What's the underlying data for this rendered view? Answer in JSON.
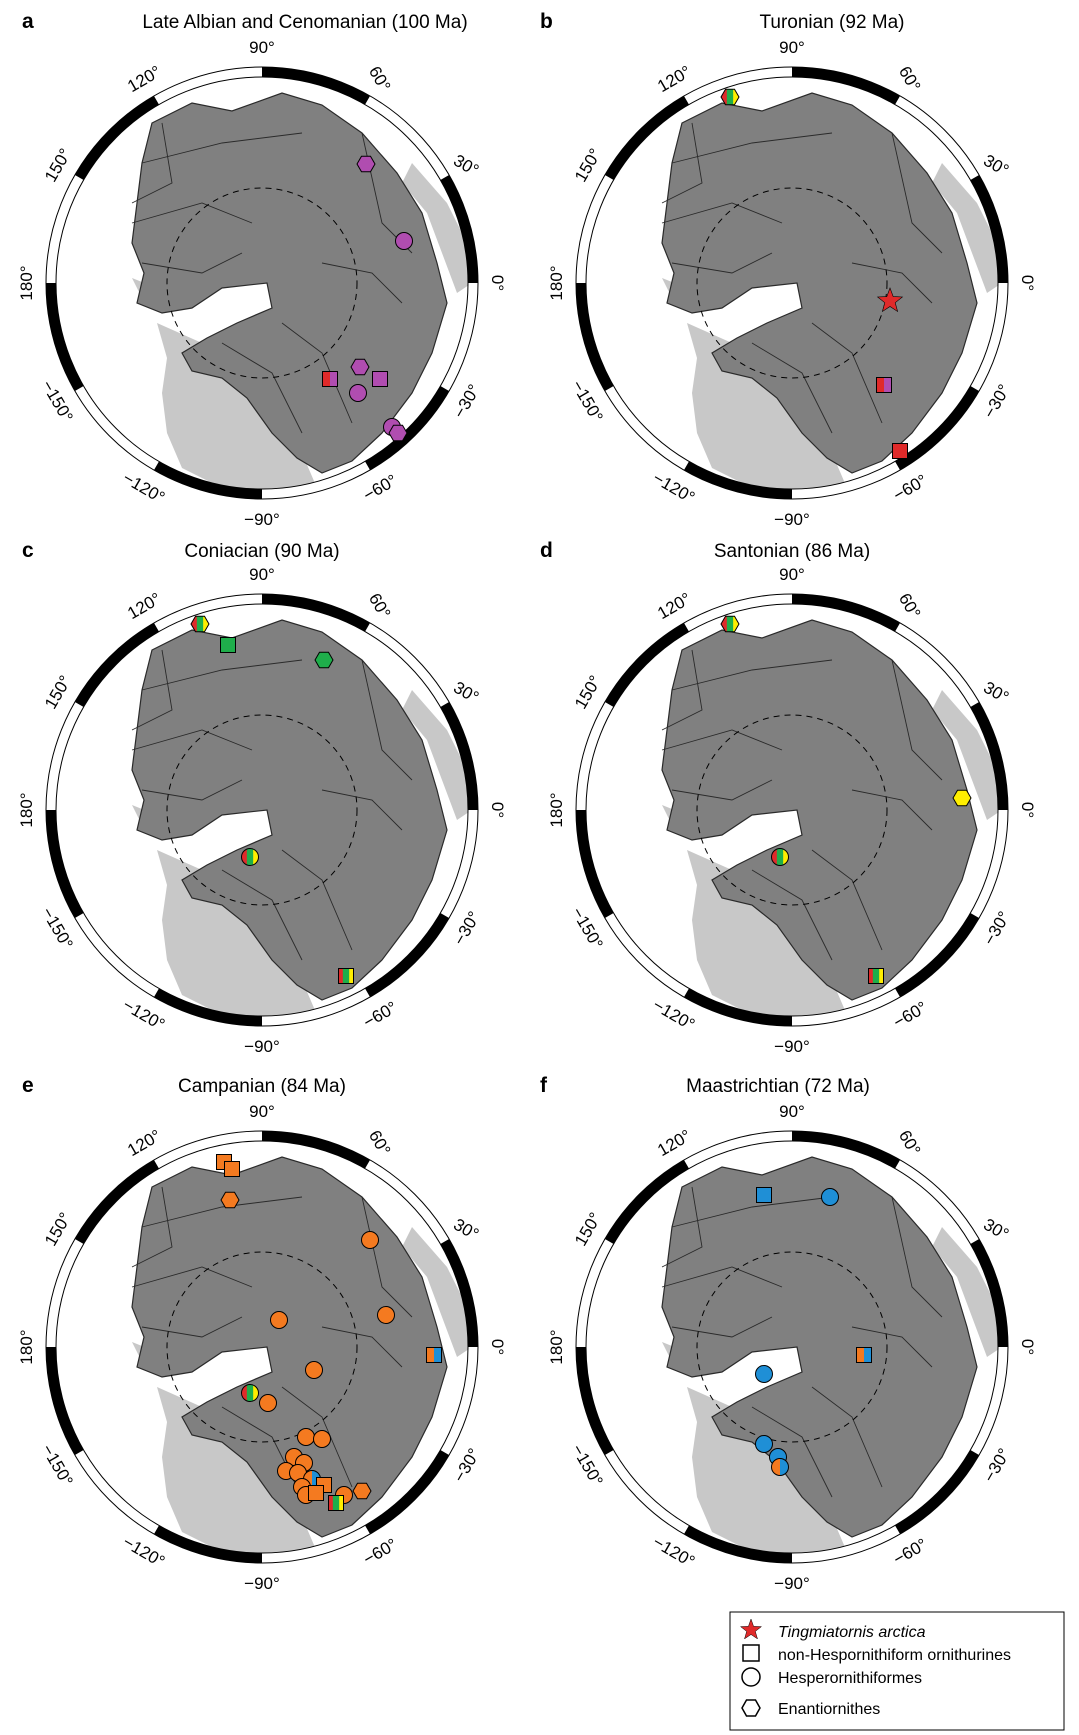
{
  "colors": {
    "landmass": "#808080",
    "landmass_edge": "#2a2a2a",
    "background_land": "#c8c8c8",
    "purple": "#b04db0",
    "red": "#e02a2a",
    "green": "#1fae4b",
    "yellow": "#ffee00",
    "orange": "#f47a20",
    "blue": "#1f8fd6"
  },
  "grid_labels": {
    "lon_90": "90°",
    "lon_60": "60°",
    "lon_30": "30°",
    "lon_0": "0°",
    "lon_m30": "−30°",
    "lon_m60": "−60°",
    "lon_m90": "−90°",
    "lon_m120": "−120°",
    "lon_m150": "−150°",
    "lon_180": "180°",
    "lon_150": "150°",
    "lon_120": "120°"
  },
  "panels": [
    {
      "letter": "a",
      "title": "Late Albian and Cenomanian (100 Ma)",
      "markers": [
        {
          "shape": "hexagon",
          "colors": [
            "purple"
          ]
        },
        {
          "shape": "circle",
          "colors": [
            "purple"
          ]
        },
        {
          "shape": "hexagon",
          "colors": [
            "purple"
          ]
        },
        {
          "shape": "square",
          "colors": [
            "purple"
          ]
        },
        {
          "shape": "circle",
          "colors": [
            "purple"
          ]
        },
        {
          "shape": "square",
          "colors": [
            "red",
            "purple"
          ]
        },
        {
          "shape": "circle",
          "colors": [
            "purple"
          ]
        },
        {
          "shape": "hexagon",
          "colors": [
            "purple"
          ]
        }
      ]
    },
    {
      "letter": "b",
      "title": "Turonian (92 Ma)",
      "markers": [
        {
          "shape": "hexagon",
          "colors": [
            "red",
            "green",
            "yellow"
          ]
        },
        {
          "shape": "star",
          "colors": [
            "red"
          ]
        },
        {
          "shape": "square",
          "colors": [
            "red",
            "purple"
          ]
        },
        {
          "shape": "square",
          "colors": [
            "red"
          ]
        }
      ]
    },
    {
      "letter": "c",
      "title": "Coniacian (90 Ma)",
      "markers": [
        {
          "shape": "hexagon",
          "colors": [
            "red",
            "green",
            "yellow"
          ]
        },
        {
          "shape": "square",
          "colors": [
            "green"
          ]
        },
        {
          "shape": "hexagon",
          "colors": [
            "green"
          ]
        },
        {
          "shape": "circle",
          "colors": [
            "red",
            "green",
            "yellow"
          ]
        },
        {
          "shape": "square",
          "colors": [
            "red",
            "green",
            "yellow"
          ]
        }
      ]
    },
    {
      "letter": "d",
      "title": "Santonian (86 Ma)",
      "markers": [
        {
          "shape": "hexagon",
          "colors": [
            "red",
            "green",
            "yellow"
          ]
        },
        {
          "shape": "hexagon",
          "colors": [
            "yellow"
          ]
        },
        {
          "shape": "circle",
          "colors": [
            "red",
            "green",
            "yellow"
          ]
        },
        {
          "shape": "square",
          "colors": [
            "red",
            "green",
            "yellow"
          ]
        }
      ]
    },
    {
      "letter": "e",
      "title": "Campanian (84 Ma)",
      "markers": [
        {
          "shape": "square",
          "colors": [
            "orange"
          ]
        },
        {
          "shape": "square",
          "colors": [
            "orange"
          ]
        },
        {
          "shape": "hexagon",
          "colors": [
            "orange"
          ]
        },
        {
          "shape": "circle",
          "colors": [
            "orange"
          ]
        },
        {
          "shape": "circle",
          "colors": [
            "orange"
          ]
        },
        {
          "shape": "circle",
          "colors": [
            "orange"
          ]
        },
        {
          "shape": "square",
          "colors": [
            "orange",
            "blue"
          ]
        },
        {
          "shape": "circle",
          "colors": [
            "orange"
          ]
        },
        {
          "shape": "circle",
          "colors": [
            "red",
            "green",
            "yellow"
          ]
        },
        {
          "shape": "circle",
          "colors": [
            "orange"
          ]
        },
        {
          "shape": "circle",
          "colors": [
            "orange"
          ]
        },
        {
          "shape": "circle",
          "colors": [
            "orange"
          ]
        },
        {
          "shape": "circle",
          "colors": [
            "orange"
          ]
        },
        {
          "shape": "circle",
          "colors": [
            "orange"
          ]
        },
        {
          "shape": "circle",
          "colors": [
            "orange"
          ]
        },
        {
          "shape": "circle",
          "colors": [
            "orange"
          ]
        },
        {
          "shape": "circle",
          "colors": [
            "orange",
            "blue"
          ]
        },
        {
          "shape": "circle",
          "colors": [
            "orange"
          ]
        },
        {
          "shape": "square",
          "colors": [
            "orange"
          ]
        },
        {
          "shape": "circle",
          "colors": [
            "orange"
          ]
        },
        {
          "shape": "square",
          "colors": [
            "orange"
          ]
        },
        {
          "shape": "circle",
          "colors": [
            "orange"
          ]
        },
        {
          "shape": "hexagon",
          "colors": [
            "orange"
          ]
        },
        {
          "shape": "square",
          "colors": [
            "red",
            "green",
            "yellow"
          ]
        }
      ]
    },
    {
      "letter": "f",
      "title": "Maastrichtian (72 Ma)",
      "markers": [
        {
          "shape": "square",
          "colors": [
            "blue"
          ]
        },
        {
          "shape": "circle",
          "colors": [
            "blue"
          ]
        },
        {
          "shape": "square",
          "colors": [
            "orange",
            "blue"
          ]
        },
        {
          "shape": "circle",
          "colors": [
            "blue"
          ]
        },
        {
          "shape": "circle",
          "colors": [
            "blue"
          ]
        },
        {
          "shape": "circle",
          "colors": [
            "blue"
          ]
        },
        {
          "shape": "circle",
          "colors": [
            "orange",
            "blue"
          ]
        }
      ]
    }
  ],
  "legend": {
    "star_label": "Tingmiatornis arctica",
    "square_label": "non-Hespornithiform ornithurines",
    "circle_label": "Hesperornithiformes",
    "hexagon_label": "Enantiornithes"
  }
}
